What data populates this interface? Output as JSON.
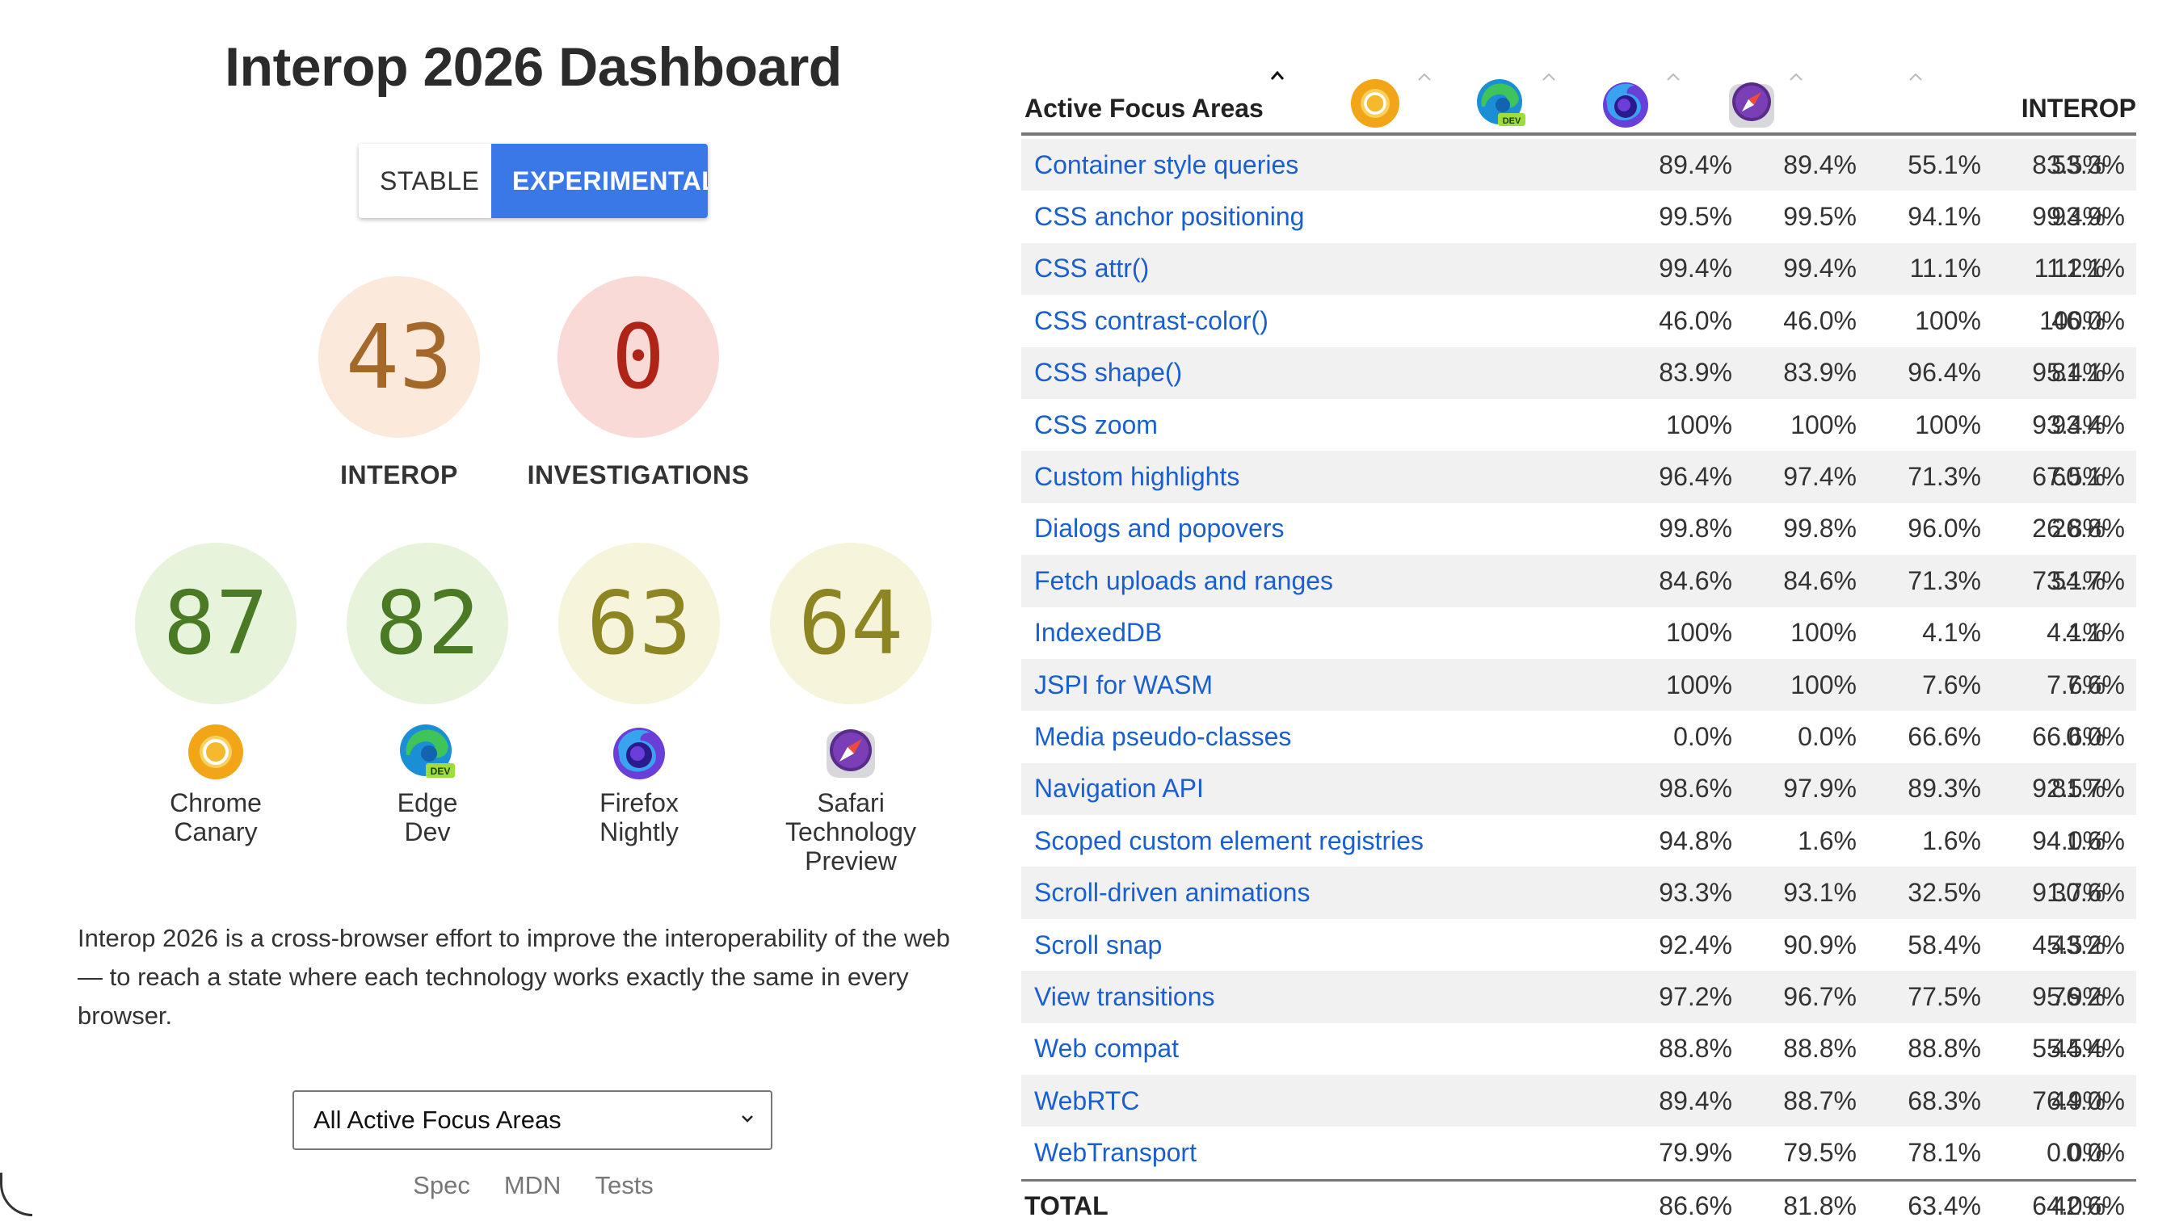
{
  "title": "Interop 2026 Dashboard",
  "toggle": {
    "stable": "STABLE",
    "experimental": "EXPERIMENTAL",
    "active": "experimental"
  },
  "summary": {
    "interop": {
      "value": "43",
      "label": "INTEROP"
    },
    "investigations": {
      "value": "0",
      "label": "INVESTIGATIONS"
    }
  },
  "browsers": [
    {
      "score": "87",
      "name_line1": "Chrome",
      "name_line2": "Canary",
      "name_line3": "",
      "icon": "chrome-canary-icon"
    },
    {
      "score": "82",
      "name_line1": "Edge",
      "name_line2": "Dev",
      "name_line3": "",
      "icon": "edge-dev-icon"
    },
    {
      "score": "63",
      "name_line1": "Firefox",
      "name_line2": "Nightly",
      "name_line3": "",
      "icon": "firefox-nightly-icon"
    },
    {
      "score": "64",
      "name_line1": "Safari",
      "name_line2": "Technology",
      "name_line3": "Preview",
      "icon": "safari-tp-icon"
    }
  ],
  "description": "Interop 2026 is a cross-browser effort to improve the interoperability of the web — to reach a state where each technology works exactly the same in every browser.",
  "filter": {
    "selected": "All Active Focus Areas"
  },
  "links": {
    "spec": "Spec",
    "mdn": "MDN",
    "tests": "Tests"
  },
  "table": {
    "header": "Active Focus Areas",
    "interop_header": "INTEROP",
    "rows": [
      {
        "name": "Container style queries",
        "values": [
          "89.4%",
          "89.4%",
          "55.1%",
          "83.5%",
          "53.3%"
        ]
      },
      {
        "name": "CSS anchor positioning",
        "values": [
          "99.5%",
          "99.5%",
          "94.1%",
          "99.4%",
          "93.9%"
        ]
      },
      {
        "name": "CSS attr()",
        "values": [
          "99.4%",
          "99.4%",
          "11.1%",
          "11.2%",
          "11.1%"
        ]
      },
      {
        "name": "CSS contrast-color()",
        "values": [
          "46.0%",
          "46.0%",
          "100%",
          "100%",
          "46.0%"
        ]
      },
      {
        "name": "CSS shape()",
        "values": [
          "83.9%",
          "83.9%",
          "96.4%",
          "95.4%",
          "81.1%"
        ]
      },
      {
        "name": "CSS zoom",
        "values": [
          "100%",
          "100%",
          "100%",
          "93.4%",
          "93.4%"
        ]
      },
      {
        "name": "Custom highlights",
        "values": [
          "96.4%",
          "97.4%",
          "71.3%",
          "67.5%",
          "60.1%"
        ]
      },
      {
        "name": "Dialogs and popovers",
        "values": [
          "99.8%",
          "99.8%",
          "96.0%",
          "26.8%",
          "26.8%"
        ]
      },
      {
        "name": "Fetch uploads and ranges",
        "values": [
          "84.6%",
          "84.6%",
          "71.3%",
          "73.1%",
          "54.7%"
        ]
      },
      {
        "name": "IndexedDB",
        "values": [
          "100%",
          "100%",
          "4.1%",
          "4.1%",
          "4.1%"
        ]
      },
      {
        "name": "JSPI for WASM",
        "values": [
          "100%",
          "100%",
          "7.6%",
          "7.6%",
          "7.6%"
        ]
      },
      {
        "name": "Media pseudo-classes",
        "values": [
          "0.0%",
          "0.0%",
          "66.6%",
          "66.6%",
          "0.0%"
        ]
      },
      {
        "name": "Navigation API",
        "values": [
          "98.6%",
          "97.9%",
          "89.3%",
          "92.5%",
          "81.7%"
        ]
      },
      {
        "name": "Scoped custom element registries",
        "values": [
          "94.8%",
          "1.6%",
          "1.6%",
          "94.0%",
          "1.6%"
        ]
      },
      {
        "name": "Scroll-driven animations",
        "values": [
          "93.3%",
          "93.1%",
          "32.5%",
          "91.7%",
          "30.6%"
        ]
      },
      {
        "name": "Scroll snap",
        "values": [
          "92.4%",
          "90.9%",
          "58.4%",
          "45.5%",
          "43.2%"
        ]
      },
      {
        "name": "View transitions",
        "values": [
          "97.2%",
          "96.7%",
          "77.5%",
          "95.9%",
          "76.2%"
        ]
      },
      {
        "name": "Web compat",
        "values": [
          "88.8%",
          "88.8%",
          "88.8%",
          "55.5%",
          "44.4%"
        ]
      },
      {
        "name": "WebRTC",
        "values": [
          "89.4%",
          "88.7%",
          "68.3%",
          "76.9%",
          "44.0%"
        ]
      },
      {
        "name": "WebTransport",
        "values": [
          "79.9%",
          "79.5%",
          "78.1%",
          "0.0%",
          "0.0%"
        ]
      }
    ],
    "total": {
      "label": "TOTAL",
      "values": [
        "86.6%",
        "81.8%",
        "63.4%",
        "64.0%",
        "42.6%"
      ]
    }
  },
  "colors": {
    "accent": "#3b78e7",
    "link": "#1a5fd0",
    "interop_circle": "#fbeadb",
    "investigations_circle": "#fadad6",
    "high_score_circle": "#e8f3dc",
    "mid_score_circle": "#f6f5dc"
  }
}
